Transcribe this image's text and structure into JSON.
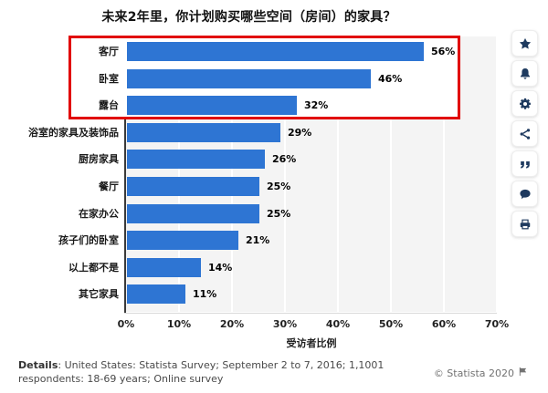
{
  "title": "未来2年里，你计划购买哪些空间（房间）的家具？",
  "chart_data": {
    "type": "bar",
    "orientation": "horizontal",
    "title": "未来2年里，你计划购买哪些空间（房间）的家具？",
    "categories": [
      "客厅",
      "卧室",
      "露台",
      "浴室的家具及装饰品",
      "厨房家具",
      "餐厅",
      "在家办公",
      "孩子们的卧室",
      "以上都不是",
      "其它家具"
    ],
    "values": [
      56,
      46,
      32,
      29,
      26,
      25,
      25,
      21,
      14,
      11
    ],
    "value_labels": [
      "56%",
      "46%",
      "32%",
      "29%",
      "26%",
      "25%",
      "25%",
      "21%",
      "14%",
      "11%"
    ],
    "xlabel": "受访者比例",
    "ylabel": "",
    "xlim": [
      0,
      70
    ],
    "x_ticks": [
      "0%",
      "10%",
      "20%",
      "30%",
      "40%",
      "50%",
      "60%",
      "70%"
    ],
    "grid": "vertical-white-on-light-gray",
    "bar_color": "#2e75d3",
    "plot_background": "#f4f4f4",
    "highlight": {
      "rows": [
        0,
        1,
        2
      ],
      "border_color": "#e10000"
    }
  },
  "sidebar": {
    "icons": [
      "star-icon",
      "bell-icon",
      "gear-icon",
      "share-icon",
      "quote-icon",
      "comment-icon",
      "print-icon"
    ]
  },
  "footer": {
    "details_label": "Details",
    "details_text": ": United States: Statista Survey; September 2 to 7, 2016; 1,1001 respondents: 18-69 years; Online survey",
    "copyright": "© Statista 2020"
  }
}
